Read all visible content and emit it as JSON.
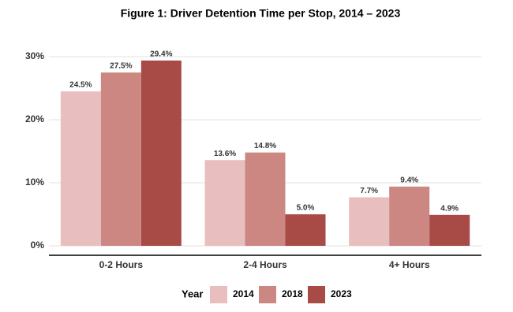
{
  "chart_data": {
    "type": "bar",
    "title": "Figure 1: Driver Detention Time per Stop, 2014 – 2023",
    "categories": [
      "0-2 Hours",
      "2-4 Hours",
      "4+ Hours"
    ],
    "series": [
      {
        "name": "2014",
        "color": "#e8bfbe",
        "values": [
          24.5,
          13.6,
          7.7
        ],
        "value_labels": [
          "24.5%",
          "13.6%",
          "7.7%"
        ]
      },
      {
        "name": "2018",
        "color": "#cd8783",
        "values": [
          27.5,
          14.8,
          9.4
        ],
        "value_labels": [
          "27.5%",
          "14.8%",
          "9.4%"
        ]
      },
      {
        "name": "2023",
        "color": "#a84a45",
        "values": [
          29.4,
          5.0,
          4.9
        ],
        "value_labels": [
          "29.4%",
          "5.0%",
          "4.9%"
        ]
      }
    ],
    "ylim": [
      0,
      30
    ],
    "yticks": [
      {
        "value": 0,
        "label": "0%"
      },
      {
        "value": 10,
        "label": "10%"
      },
      {
        "value": 20,
        "label": "20%"
      },
      {
        "value": 30,
        "label": "30%"
      }
    ],
    "grid": true,
    "legend_title": "Year",
    "legend_position": "bottom"
  }
}
